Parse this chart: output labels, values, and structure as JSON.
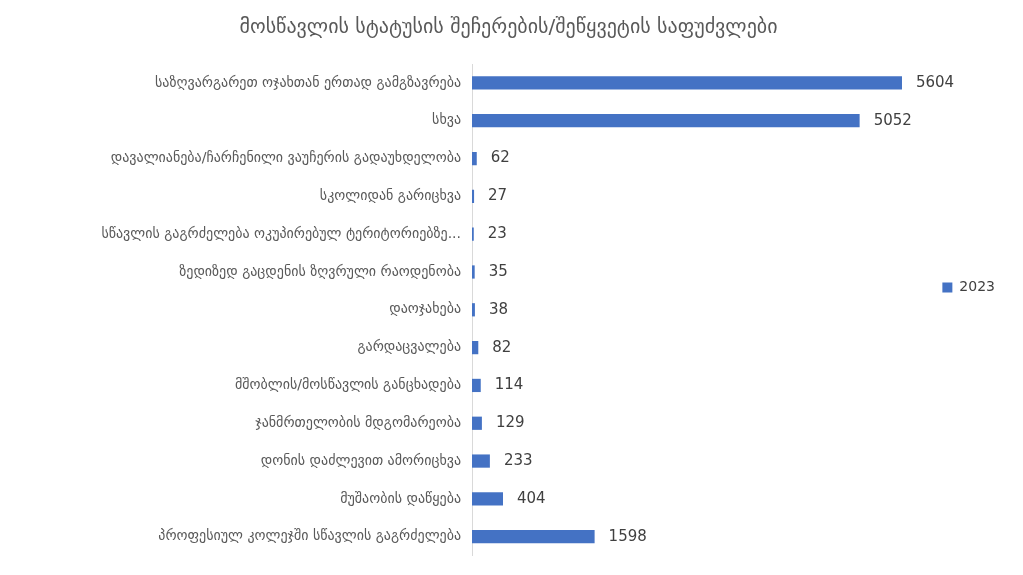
{
  "chart_data": {
    "type": "bar",
    "orientation": "horizontal",
    "title": "მოსწავლის სტატუსის შეჩერების/შეწყვეტის საფუძვლები",
    "categories": [
      "საზღვარგარეთ ოჯახთან ერთად გამგზავრება",
      "სხვა",
      "დავალიანება/ჩარჩენილი ვაუჩერის გადაუხდელობა",
      "სკოლიდან გარიცხვა",
      "სწავლის გაგრძელება ოკუპირებულ ტერიტორიებზე...",
      "ზედიზედ გაცდენის ზღვრული რაოდენობა",
      "დაოჯახება",
      "გარდაცვალება",
      "მშობლის/მოსწავლის განცხადება",
      "ჯანმრთელობის მდგომარეობა",
      "დონის დაძლევით ამორიცხვა",
      "მუშაობის დაწყება",
      "პროფესიულ კოლეჯში სწავლის გაგრძელება"
    ],
    "series": [
      {
        "name": "2023",
        "color": "#4472c4",
        "values": [
          5604,
          5052,
          62,
          27,
          23,
          35,
          38,
          82,
          114,
          129,
          233,
          404,
          1598
        ]
      }
    ],
    "tick_labels": "y",
    "grid": false,
    "legend": "right",
    "data_labels": true
  }
}
